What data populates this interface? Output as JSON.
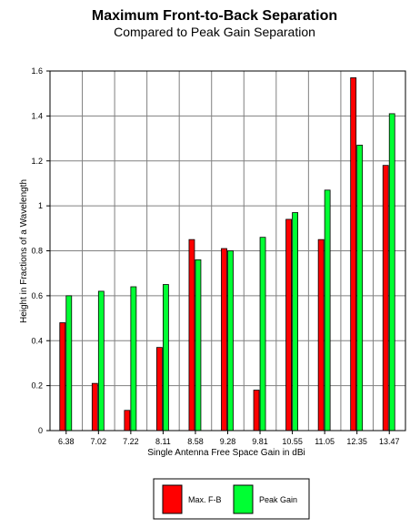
{
  "chart_data": {
    "type": "bar",
    "title": "Maximum Front-to-Back Separation",
    "subtitle": "Compared to Peak Gain Separation",
    "xlabel": "Single Antenna Free Space Gain in dBi",
    "ylabel": "Height in Fractions of a Wavelength",
    "categories": [
      "6.38",
      "7.02",
      "7.22",
      "8.11",
      "8.58",
      "9.28",
      "9.81",
      "10.55",
      "11.05",
      "12.35",
      "13.47"
    ],
    "ylim": [
      0,
      1.6
    ],
    "yticks": [
      "0",
      "0.2",
      "0.4",
      "0.6",
      "0.8",
      "1",
      "1.2",
      "1.4",
      "1.6"
    ],
    "grid": true,
    "legend_position": "bottom",
    "series": [
      {
        "name": "Max. F-B",
        "color": "#ff0000",
        "values": [
          0.48,
          0.21,
          0.09,
          0.37,
          0.85,
          0.81,
          0.18,
          0.94,
          0.85,
          1.57,
          1.18
        ]
      },
      {
        "name": "Peak Gain",
        "color": "#00ff33",
        "values": [
          0.6,
          0.62,
          0.64,
          0.65,
          0.76,
          0.8,
          0.86,
          0.97,
          1.07,
          1.27,
          1.41
        ]
      }
    ]
  }
}
